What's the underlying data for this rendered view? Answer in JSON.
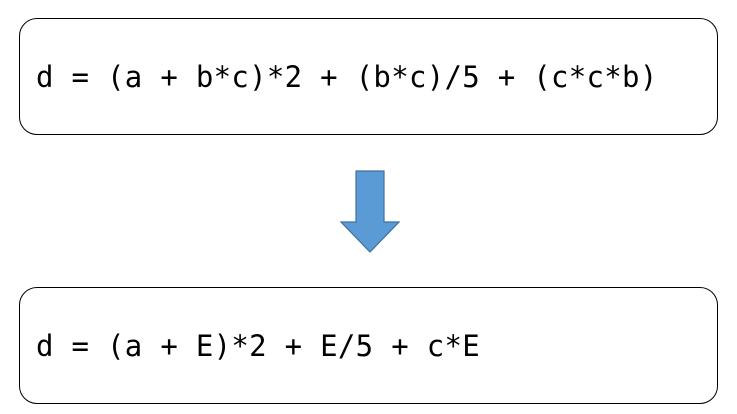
{
  "expressions": {
    "original": "d = (a + b*c)*2 + (b*c)/5 + (c*c*b)",
    "simplified": "d = (a + E)*2 + E/5 + c*E"
  },
  "colors": {
    "arrow_fill": "#5b9bd5",
    "arrow_stroke": "#41719c",
    "box_border": "#000000"
  },
  "icons": {
    "transform_arrow": "down-arrow-icon"
  }
}
